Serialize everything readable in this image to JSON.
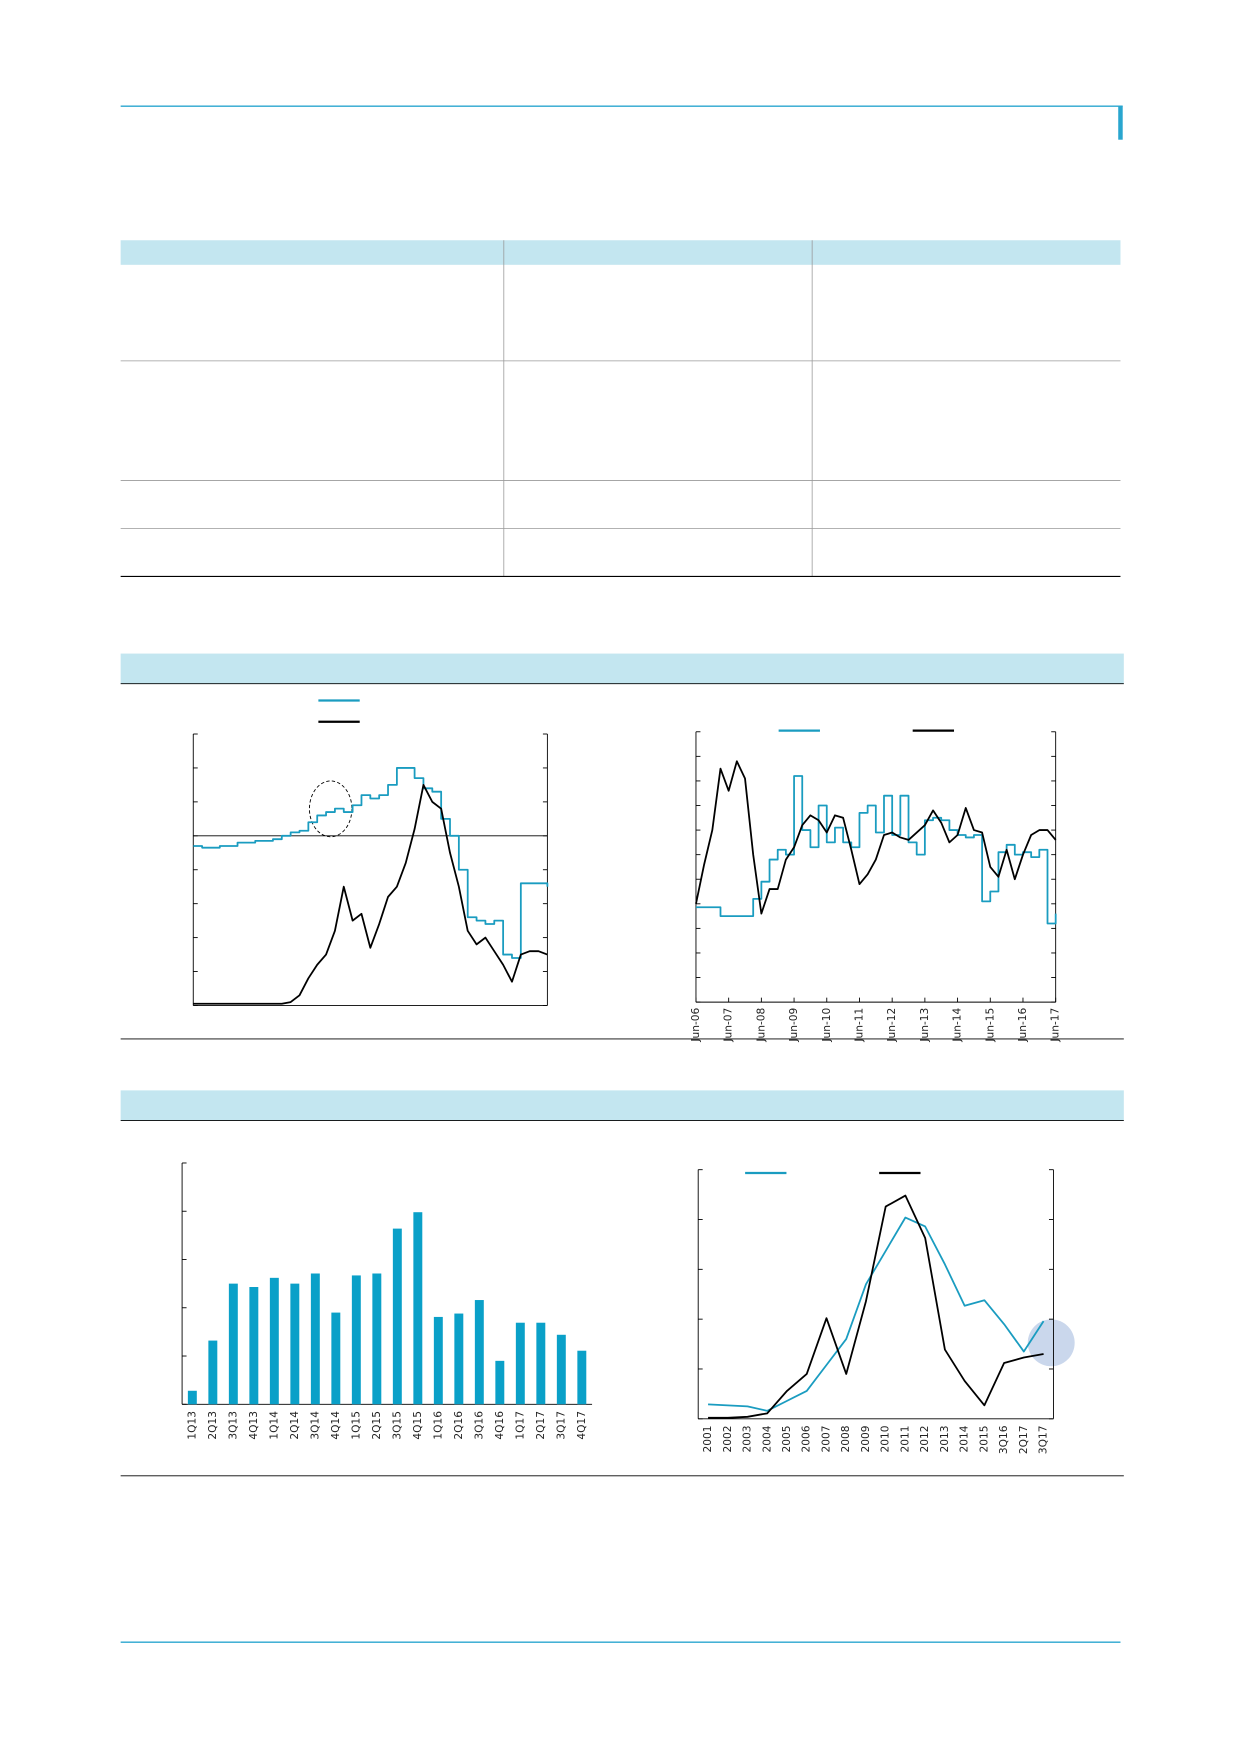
{
  "chart_data": [
    {
      "type": "line",
      "xlim": [
        0,
        100
      ],
      "ylim": [
        -5,
        3
      ],
      "yticks": [
        -5,
        -4,
        -3,
        -2,
        -1,
        0,
        1,
        2,
        3
      ],
      "x": [
        0,
        2.5,
        5,
        7.5,
        10,
        12.5,
        15,
        17.5,
        20,
        22.5,
        25,
        27.5,
        30,
        32.5,
        35,
        37.5,
        40,
        42.5,
        45,
        47.5,
        50,
        52.5,
        55,
        57.5,
        60,
        62.5,
        65,
        67.5,
        70,
        72.5,
        75,
        77.5,
        80,
        82.5,
        85,
        87.5,
        90,
        92.5,
        95,
        97.5,
        100
      ],
      "series": [
        {
          "color": "#1a9cc0",
          "step": true,
          "values": [
            -0.3,
            -0.35,
            -0.35,
            -0.3,
            -0.3,
            -0.2,
            -0.2,
            -0.15,
            -0.15,
            -0.1,
            0.0,
            0.1,
            0.15,
            0.4,
            0.6,
            0.7,
            0.8,
            0.7,
            0.9,
            1.2,
            1.1,
            1.2,
            1.5,
            2.0,
            2.0,
            1.7,
            1.4,
            1.3,
            0.5,
            0.0,
            -1.0,
            -2.4,
            -2.5,
            -2.6,
            -2.5,
            -3.5,
            -3.6,
            -1.4,
            -1.4,
            -1.4,
            -1.5
          ]
        },
        {
          "color": "#000000",
          "values": [
            -4.95,
            -4.95,
            -4.95,
            -4.95,
            -4.95,
            -4.95,
            -4.95,
            -4.95,
            -4.95,
            -4.95,
            -4.95,
            -4.9,
            -4.7,
            -4.2,
            -3.8,
            -3.5,
            -2.8,
            -1.5,
            -2.5,
            -2.3,
            -3.3,
            -2.6,
            -1.8,
            -1.5,
            -0.8,
            0.2,
            1.5,
            1.0,
            0.8,
            -0.5,
            -1.5,
            -2.8,
            -3.2,
            -3.0,
            -3.4,
            -3.8,
            -4.3,
            -3.5,
            -3.4,
            -3.4,
            -3.5
          ]
        }
      ]
    },
    {
      "type": "line",
      "xlim": [
        2006.5,
        2017.5
      ],
      "ylim": [
        0,
        11
      ],
      "yticks": [
        0,
        1,
        2,
        3,
        4,
        5,
        6,
        7,
        8,
        9,
        10,
        11
      ],
      "xticks": [
        {
          "value": 2006.5,
          "label": "Jun-06"
        },
        {
          "value": 2007.5,
          "label": "Jun-07"
        },
        {
          "value": 2008.5,
          "label": "Jun-08"
        },
        {
          "value": 2009.5,
          "label": "Jun-09"
        },
        {
          "value": 2010.5,
          "label": "Jun-10"
        },
        {
          "value": 2011.5,
          "label": "Jun-11"
        },
        {
          "value": 2012.5,
          "label": "Jun-12"
        },
        {
          "value": 2013.5,
          "label": "Jun-13"
        },
        {
          "value": 2014.5,
          "label": "Jun-14"
        },
        {
          "value": 2015.5,
          "label": "Jun-15"
        },
        {
          "value": 2016.5,
          "label": "Jun-16"
        },
        {
          "value": 2017.5,
          "label": "Jun-17"
        }
      ],
      "x": [
        2006.5,
        2006.75,
        2007.0,
        2007.25,
        2007.5,
        2007.75,
        2008.0,
        2008.25,
        2008.5,
        2008.75,
        2009.0,
        2009.25,
        2009.5,
        2009.75,
        2010.0,
        2010.25,
        2010.5,
        2010.75,
        2011.0,
        2011.25,
        2011.5,
        2011.75,
        2012.0,
        2012.25,
        2012.5,
        2012.75,
        2013.0,
        2013.25,
        2013.5,
        2013.75,
        2014.0,
        2014.25,
        2014.5,
        2014.75,
        2015.0,
        2015.25,
        2015.5,
        2015.75,
        2016.0,
        2016.25,
        2016.5,
        2016.75,
        2017.0,
        2017.25,
        2017.5
      ],
      "series": [
        {
          "color": "#1a9cc0",
          "step": true,
          "values": [
            3.86,
            3.86,
            3.86,
            3.5,
            3.5,
            3.5,
            3.5,
            4.2,
            4.9,
            5.8,
            6.2,
            6.0,
            9.2,
            7.0,
            6.3,
            8.0,
            6.5,
            7.1,
            6.5,
            6.3,
            7.7,
            8.0,
            6.9,
            8.4,
            6.8,
            8.4,
            6.5,
            6.0,
            7.4,
            7.5,
            7.4,
            7.0,
            6.8,
            6.7,
            6.8,
            4.1,
            4.5,
            6.1,
            6.4,
            6.0,
            6.1,
            5.9,
            6.2,
            3.2,
            3.6
          ]
        },
        {
          "color": "#000000",
          "values": [
            4.0,
            5.6,
            7.0,
            9.5,
            8.6,
            9.8,
            9.1,
            6.0,
            3.6,
            4.6,
            4.6,
            5.8,
            6.3,
            7.2,
            7.6,
            7.4,
            6.9,
            7.6,
            7.5,
            6.2,
            4.8,
            5.2,
            5.8,
            6.8,
            6.9,
            6.7,
            6.6,
            6.9,
            7.2,
            7.8,
            7.3,
            6.5,
            6.8,
            7.9,
            7.0,
            6.9,
            5.5,
            5.1,
            6.2,
            5.0,
            6.0,
            6.8,
            7.0,
            7.0,
            6.6
          ]
        }
      ]
    },
    {
      "type": "bar",
      "color": "#0aa0c8",
      "ylim": [
        0,
        5
      ],
      "yticks": [
        0,
        1,
        2,
        3,
        4,
        5
      ],
      "categories": [
        "1Q13",
        "2Q13",
        "3Q13",
        "4Q13",
        "1Q14",
        "2Q14",
        "3Q14",
        "4Q14",
        "1Q15",
        "2Q15",
        "3Q15",
        "4Q15",
        "1Q16",
        "2Q16",
        "3Q16",
        "4Q16",
        "1Q17",
        "2Q17",
        "3Q17",
        "4Q17"
      ],
      "values": [
        0.28,
        1.32,
        2.5,
        2.43,
        2.62,
        2.5,
        2.71,
        1.9,
        2.67,
        2.71,
        3.64,
        3.98,
        1.81,
        1.88,
        2.16,
        0.9,
        1.69,
        1.69,
        1.44,
        1.11
      ]
    },
    {
      "type": "line",
      "ylim": [
        0,
        5
      ],
      "yticks": [
        0,
        1,
        2,
        3,
        4,
        5
      ],
      "categories": [
        "2001",
        "2002",
        "2003",
        "2004",
        "2005",
        "2006",
        "2007",
        "2008",
        "2009",
        "2010",
        "2011",
        "2012",
        "2013",
        "2014",
        "2015",
        "3Q16",
        "2Q17",
        "3Q17"
      ],
      "series": [
        {
          "color": "#1a9cc0",
          "values": [
            0.29,
            0.27,
            0.25,
            0.16,
            0.36,
            0.56,
            1.08,
            1.6,
            2.7,
            3.37,
            4.04,
            3.86,
            3.1,
            2.27,
            2.38,
            1.9,
            1.35,
            1.96
          ]
        },
        {
          "color": "#000000",
          "values": [
            0.02,
            0.02,
            0.04,
            0.11,
            0.56,
            0.9,
            2.02,
            0.9,
            2.36,
            4.26,
            4.48,
            3.63,
            1.39,
            0.76,
            0.27,
            1.12,
            1.23,
            1.3
          ]
        }
      ]
    }
  ]
}
